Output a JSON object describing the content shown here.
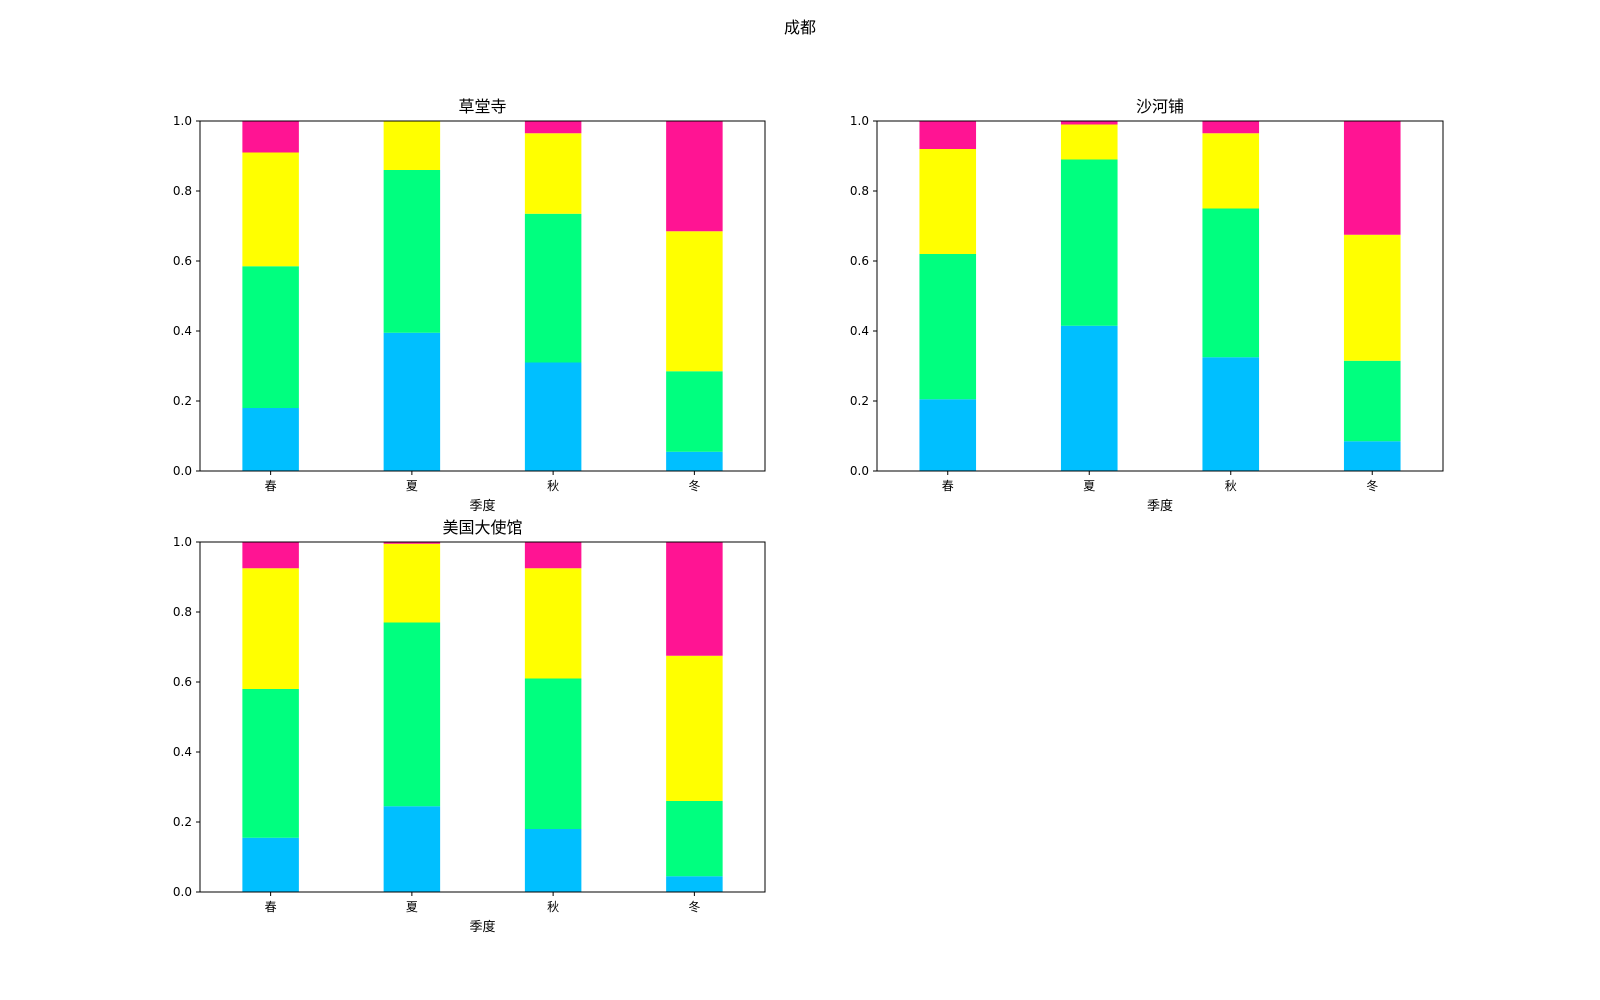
{
  "figure": {
    "title": "成都"
  },
  "colors": [
    "#00bfff",
    "#00ff7f",
    "#ffff00",
    "#ff1493"
  ],
  "chart_data": [
    {
      "type": "bar",
      "stacked": true,
      "title": "草堂寺",
      "xlabel": "季度",
      "ylabel": "",
      "ylim": [
        0,
        1
      ],
      "yticks": [
        "0.0",
        "0.2",
        "0.4",
        "0.6",
        "0.8",
        "1.0"
      ],
      "categories": [
        "春",
        "夏",
        "秋",
        "冬"
      ],
      "series": [
        {
          "values": [
            0.18,
            0.395,
            0.31,
            0.055
          ]
        },
        {
          "values": [
            0.405,
            0.465,
            0.425,
            0.23
          ]
        },
        {
          "values": [
            0.325,
            0.14,
            0.23,
            0.4
          ]
        },
        {
          "values": [
            0.09,
            0.0,
            0.035,
            0.315
          ]
        }
      ],
      "grid": false
    },
    {
      "type": "bar",
      "stacked": true,
      "title": "沙河铺",
      "xlabel": "季度",
      "ylabel": "",
      "ylim": [
        0,
        1
      ],
      "yticks": [
        "0.0",
        "0.2",
        "0.4",
        "0.6",
        "0.8",
        "1.0"
      ],
      "categories": [
        "春",
        "夏",
        "秋",
        "冬"
      ],
      "series": [
        {
          "values": [
            0.205,
            0.415,
            0.325,
            0.085
          ]
        },
        {
          "values": [
            0.415,
            0.475,
            0.425,
            0.23
          ]
        },
        {
          "values": [
            0.3,
            0.1,
            0.215,
            0.36
          ]
        },
        {
          "values": [
            0.08,
            0.01,
            0.035,
            0.325
          ]
        }
      ],
      "grid": false
    },
    {
      "type": "bar",
      "stacked": true,
      "title": "美国大使馆",
      "xlabel": "季度",
      "ylabel": "",
      "ylim": [
        0,
        1
      ],
      "yticks": [
        "0.0",
        "0.2",
        "0.4",
        "0.6",
        "0.8",
        "1.0"
      ],
      "categories": [
        "春",
        "夏",
        "秋",
        "冬"
      ],
      "series": [
        {
          "values": [
            0.155,
            0.245,
            0.18,
            0.045
          ]
        },
        {
          "values": [
            0.425,
            0.525,
            0.43,
            0.215
          ]
        },
        {
          "values": [
            0.345,
            0.225,
            0.315,
            0.415
          ]
        },
        {
          "values": [
            0.075,
            0.005,
            0.075,
            0.325
          ]
        }
      ],
      "grid": false
    }
  ]
}
